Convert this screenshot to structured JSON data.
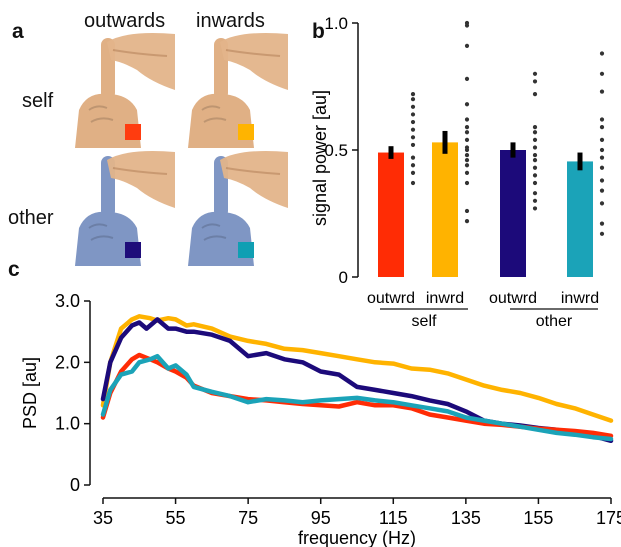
{
  "panel_a": {
    "letter": "a",
    "col_outwards": "outwards",
    "col_inwards": "inwards",
    "row_self": "self",
    "row_other": "other",
    "images": [
      {
        "name": "self-outwards",
        "skin": "#e0b085",
        "swatch": "#ff3c0f"
      },
      {
        "name": "self-inwards",
        "skin": "#e0b085",
        "swatch": "#ffb400"
      },
      {
        "name": "other-outwards",
        "skin": "#7f96c4",
        "swatch": "#1e0d7a"
      },
      {
        "name": "other-inwards",
        "skin": "#7f96c4",
        "swatch": "#109fb3"
      }
    ]
  },
  "chart_data": [
    {
      "type": "bar",
      "panel": "b",
      "ylabel": "signal power [au]",
      "ylim": [
        0,
        1.0
      ],
      "yticks": [
        "0",
        "0.5",
        "1.0"
      ],
      "categories": [
        "outwrd",
        "inwrd",
        "outwrd",
        "inwrd"
      ],
      "groups": [
        "self",
        "other"
      ],
      "values": [
        0.49,
        0.53,
        0.5,
        0.455
      ],
      "errors": [
        0.025,
        0.045,
        0.03,
        0.035
      ],
      "colors": [
        "#ff2c05",
        "#ffb300",
        "#1c0a7a",
        "#1ba3b8"
      ],
      "points": [
        [
          0.72,
          0.7,
          0.67,
          0.64,
          0.61,
          0.58,
          0.55,
          0.52,
          0.47,
          0.44,
          0.41,
          0.37
        ],
        [
          1.0,
          0.99,
          0.91,
          0.78,
          0.68,
          0.62,
          0.59,
          0.57,
          0.54,
          0.51,
          0.5,
          0.48,
          0.46,
          0.44,
          0.41,
          0.37,
          0.26,
          0.22
        ],
        [
          0.8,
          0.77,
          0.72,
          0.59,
          0.57,
          0.54,
          0.51,
          0.48,
          0.46,
          0.43,
          0.4,
          0.37,
          0.33,
          0.3,
          0.27
        ],
        [
          0.88,
          0.8,
          0.73,
          0.62,
          0.59,
          0.54,
          0.5,
          0.47,
          0.43,
          0.38,
          0.34,
          0.29,
          0.21,
          0.17
        ]
      ]
    },
    {
      "type": "line",
      "panel": "c",
      "xlabel": "frequency (Hz)",
      "ylabel": "PSD [au]",
      "xlim": [
        35,
        175
      ],
      "ylim": [
        0,
        3.0
      ],
      "xticks": [
        35,
        55,
        75,
        95,
        115,
        135,
        155,
        175
      ],
      "yticks": [
        "0",
        "1.0",
        "2.0",
        "3.0"
      ],
      "series": [
        {
          "color": "#ffb300",
          "x": [
            35,
            37,
            40,
            43,
            45,
            48,
            50,
            53,
            55,
            58,
            60,
            65,
            70,
            75,
            80,
            85,
            90,
            95,
            100,
            105,
            110,
            115,
            120,
            125,
            130,
            135,
            140,
            145,
            150,
            155,
            160,
            165,
            170,
            175
          ],
          "y": [
            1.3,
            2.0,
            2.55,
            2.7,
            2.75,
            2.72,
            2.68,
            2.72,
            2.7,
            2.6,
            2.62,
            2.55,
            2.42,
            2.35,
            2.3,
            2.22,
            2.2,
            2.15,
            2.1,
            2.05,
            2.0,
            1.98,
            1.9,
            1.88,
            1.82,
            1.72,
            1.62,
            1.55,
            1.5,
            1.42,
            1.32,
            1.25,
            1.15,
            1.05
          ]
        },
        {
          "color": "#1c0a7a",
          "x": [
            35,
            37,
            40,
            43,
            45,
            47,
            50,
            53,
            55,
            58,
            60,
            65,
            70,
            75,
            80,
            85,
            90,
            95,
            100,
            105,
            110,
            115,
            120,
            125,
            130,
            135,
            140,
            145,
            150,
            155,
            160,
            165,
            170,
            175
          ],
          "y": [
            1.4,
            2.0,
            2.4,
            2.6,
            2.65,
            2.55,
            2.7,
            2.55,
            2.55,
            2.5,
            2.5,
            2.45,
            2.35,
            2.1,
            2.15,
            2.05,
            2.0,
            1.85,
            1.8,
            1.6,
            1.55,
            1.5,
            1.45,
            1.38,
            1.32,
            1.2,
            1.05,
            1.0,
            0.97,
            0.93,
            0.9,
            0.85,
            0.8,
            0.72
          ]
        },
        {
          "color": "#ff2c05",
          "x": [
            35,
            37,
            40,
            43,
            45,
            48,
            50,
            53,
            55,
            58,
            60,
            65,
            70,
            75,
            80,
            85,
            90,
            95,
            100,
            105,
            110,
            115,
            120,
            125,
            130,
            135,
            140,
            145,
            150,
            155,
            160,
            165,
            170,
            175
          ],
          "y": [
            1.1,
            1.5,
            1.85,
            2.05,
            2.12,
            2.05,
            2.0,
            1.9,
            1.85,
            1.75,
            1.62,
            1.5,
            1.45,
            1.4,
            1.38,
            1.35,
            1.32,
            1.3,
            1.28,
            1.35,
            1.3,
            1.3,
            1.25,
            1.15,
            1.1,
            1.05,
            1.0,
            0.98,
            0.95,
            0.92,
            0.9,
            0.88,
            0.85,
            0.8
          ]
        },
        {
          "color": "#1ba3b8",
          "x": [
            35,
            37,
            40,
            43,
            45,
            48,
            50,
            53,
            55,
            58,
            60,
            65,
            70,
            75,
            80,
            85,
            90,
            95,
            100,
            105,
            110,
            115,
            120,
            125,
            130,
            135,
            140,
            145,
            150,
            155,
            160,
            165,
            170,
            175
          ],
          "y": [
            1.15,
            1.55,
            1.8,
            1.85,
            2.0,
            2.05,
            2.1,
            1.9,
            1.95,
            1.8,
            1.6,
            1.52,
            1.45,
            1.35,
            1.4,
            1.38,
            1.35,
            1.38,
            1.4,
            1.42,
            1.38,
            1.35,
            1.3,
            1.25,
            1.2,
            1.1,
            1.05,
            1.0,
            0.95,
            0.9,
            0.85,
            0.82,
            0.78,
            0.75
          ]
        }
      ]
    }
  ]
}
